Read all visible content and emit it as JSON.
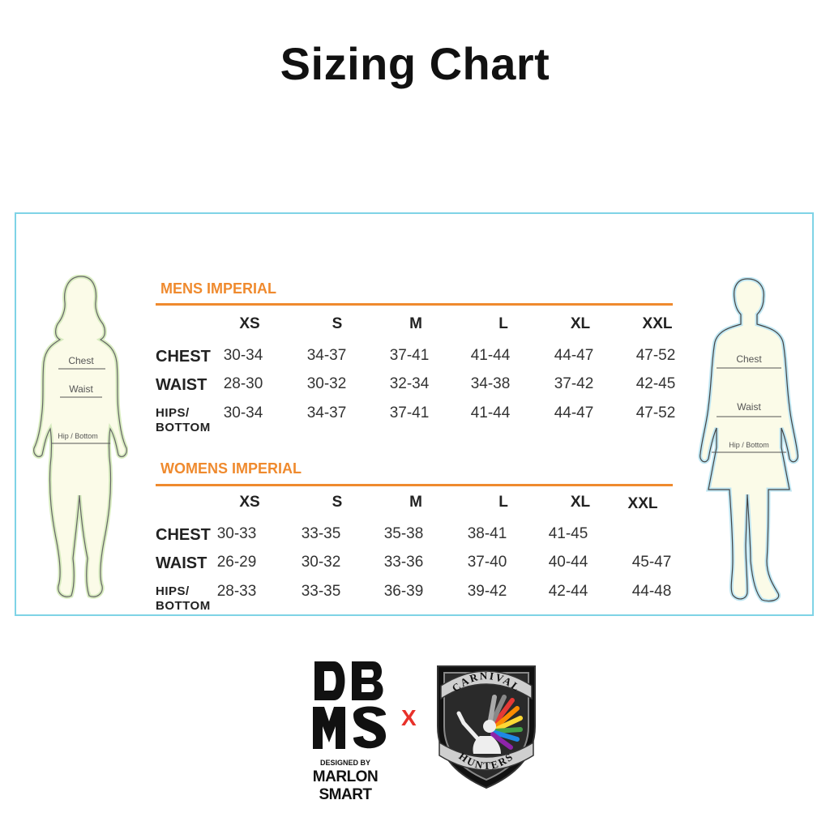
{
  "title": "Sizing Chart",
  "figures": {
    "woman": {
      "chest": "Chest",
      "waist": "Waist",
      "hip": "Hip / Bottom"
    },
    "man": {
      "chest": "Chest",
      "waist": "Waist",
      "hip": "Hip / Bottom"
    }
  },
  "mens": {
    "heading": "MENS IMPERIAL",
    "sizes": [
      "XS",
      "S",
      "M",
      "L",
      "XL",
      "XXL"
    ],
    "rows": [
      {
        "label": "CHEST",
        "values": [
          "30-34",
          "34-37",
          "37-41",
          "41-44",
          "44-47",
          "47-52"
        ]
      },
      {
        "label": "WAIST",
        "values": [
          "28-30",
          "30-32",
          "32-34",
          "34-38",
          "37-42",
          "42-45"
        ]
      },
      {
        "label_line1": "HIPS/",
        "label_line2": "BOTTOM",
        "values": [
          "30-34",
          "34-37",
          "37-41",
          "41-44",
          "44-47",
          "47-52"
        ]
      }
    ]
  },
  "womens": {
    "heading": "WOMENS IMPERIAL",
    "sizes": [
      "XS",
      "S",
      "M",
      "L",
      "XL",
      "XXL"
    ],
    "rows": [
      {
        "label": "CHEST",
        "values": [
          "30-33",
          "33-35",
          "35-38",
          "38-41",
          "41-45",
          ""
        ]
      },
      {
        "label": "WAIST",
        "values": [
          "26-29",
          "30-32",
          "33-36",
          "37-40",
          "40-44",
          "45-47"
        ]
      },
      {
        "label_line1": "HIPS/",
        "label_line2": "BOTTOM",
        "values": [
          "28-33",
          "33-35",
          "36-39",
          "39-42",
          "42-44",
          "44-48"
        ]
      }
    ]
  },
  "logos": {
    "dbms_letters": "DBMS",
    "dbms_designed": "DESIGNED BY",
    "dbms_name": "MARLON SMART",
    "times": "X",
    "ch_top": "CARNIVAL",
    "ch_bottom": "HUNTERS"
  },
  "colors": {
    "accent": "#ef8a2e",
    "frame": "#7fd3e6",
    "figure_fill": "#fbfbe8",
    "x_mark": "#e8312a"
  }
}
